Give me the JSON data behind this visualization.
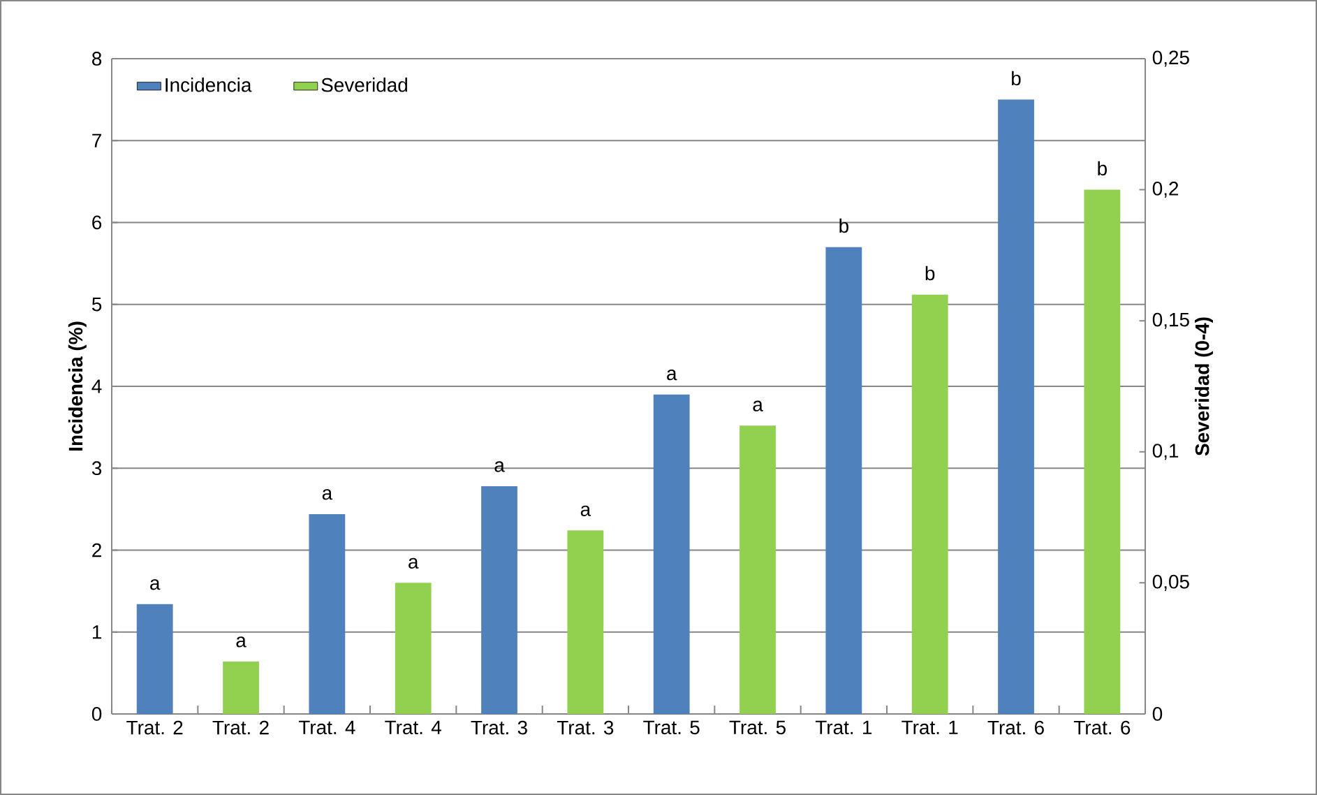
{
  "chart_data": {
    "type": "bar",
    "categories": [
      "Trat. 2",
      "Trat. 2",
      "Trat. 4",
      "Trat. 4",
      "Trat. 3",
      "Trat. 3",
      "Trat. 5",
      "Trat. 5",
      "Trat. 1",
      "Trat. 1",
      "Trat. 6",
      "Trat. 6"
    ],
    "series": [
      {
        "name": "Incidencia",
        "color": "#4f81bd",
        "values": [
          1.34,
          null,
          2.44,
          null,
          2.78,
          null,
          3.9,
          null,
          5.7,
          null,
          7.5,
          null
        ]
      },
      {
        "name": "Severidad",
        "color": "#92d050",
        "axis": "y2",
        "values": [
          null,
          0.02,
          null,
          0.05,
          null,
          0.07,
          null,
          0.11,
          null,
          0.16,
          null,
          0.2
        ]
      }
    ],
    "ylabel": "Incidencia (%)",
    "y2label": "Severidad (0-4)",
    "ylim": [
      0,
      8
    ],
    "yticks": [
      0,
      1,
      2,
      3,
      4,
      5,
      6,
      7,
      8
    ],
    "y2lim": [
      0,
      0.25
    ],
    "y2ticks": [
      0,
      {
        "value": 0.05,
        "label": "0,05"
      },
      {
        "value": 0.1,
        "label": "0,1"
      },
      {
        "value": 0.15,
        "label": "0,15"
      },
      {
        "value": 0.2,
        "label": "0,2"
      },
      {
        "value": 0.25,
        "label": "0,25"
      }
    ],
    "annotations": [
      "a",
      "a",
      "a",
      "a",
      "a",
      "a",
      "a",
      "a",
      "b",
      "b",
      "b",
      "b"
    ],
    "grid": "y",
    "legend": "top left"
  }
}
